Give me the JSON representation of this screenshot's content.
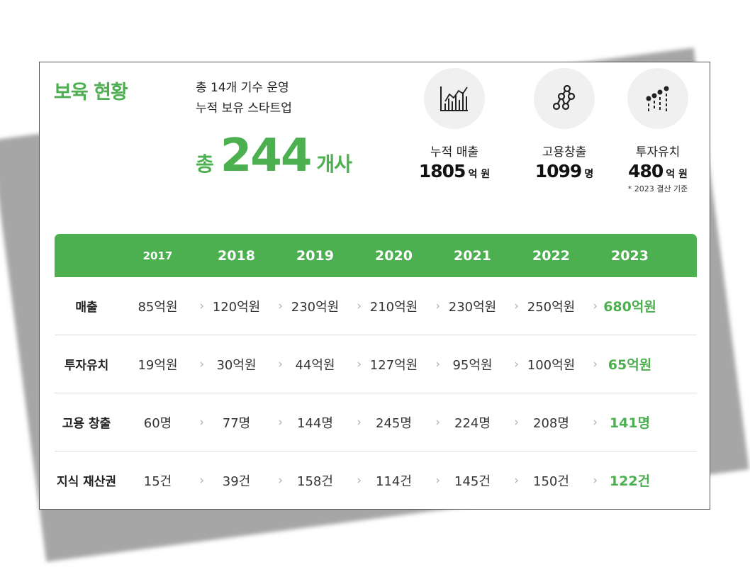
{
  "title": "보육 현황",
  "summary": {
    "line1": "총 14개 기수 운영",
    "line2": "누적 보유 스타트업",
    "prefix": "총",
    "count": "244",
    "suffix": "개사"
  },
  "stats": [
    {
      "icon": "bar-chart-icon",
      "label": "누적 매출",
      "value": "1805",
      "unit": "억 원"
    },
    {
      "icon": "network-icon",
      "label": "고용창출",
      "value": "1099",
      "unit": "명"
    },
    {
      "icon": "dots-chart-icon",
      "label": "투자유치",
      "value": "480",
      "unit": "억 원",
      "note": "* 2023 결산 기준"
    }
  ],
  "accent_color": "#4caf50",
  "table": {
    "years": [
      "2017",
      "2018",
      "2019",
      "2020",
      "2021",
      "2022",
      "2023"
    ],
    "rows": [
      {
        "label": "매출",
        "values": [
          "85억원",
          "120억원",
          "230억원",
          "210억원",
          "230억원",
          "250억원",
          "680억원"
        ]
      },
      {
        "label": "투자유치",
        "values": [
          "19억원",
          "30억원",
          "44억원",
          "127억원",
          "95억원",
          "100억원",
          "65억원"
        ]
      },
      {
        "label": "고용 창출",
        "values": [
          "60명",
          "77명",
          "144명",
          "245명",
          "224명",
          "208명",
          "141명"
        ]
      },
      {
        "label": "지식 재산권",
        "values": [
          "15건",
          "39건",
          "158건",
          "114건",
          "145건",
          "150건",
          "122건"
        ]
      }
    ]
  }
}
